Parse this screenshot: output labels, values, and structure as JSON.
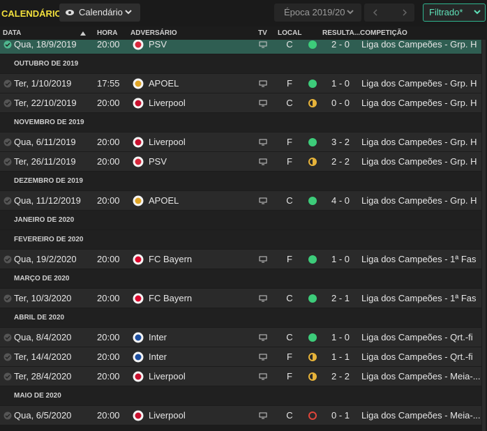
{
  "header": {
    "title": "CALENDÁRIO",
    "view_button": "Calendário",
    "season": "Época 2019/20",
    "filter": "Filtrado*"
  },
  "columns": [
    "DATA",
    "HORA",
    "ADVERSÁRIO",
    "TV",
    "LOCAL",
    "RESULTA...",
    "COMPETIÇÃO"
  ],
  "rows": [
    {
      "date": "Qua, 18/9/2019",
      "time": "20:00",
      "opponent": "PSV",
      "crest": "#d8283c",
      "venue": "C",
      "outcome": "win",
      "result": "2 - 0",
      "competition": "Liga dos Campeões - Grp. H",
      "selected": true
    },
    {
      "section": "OUTUBRO DE 2019"
    },
    {
      "date": "Ter, 1/10/2019",
      "time": "17:55",
      "opponent": "APOEL",
      "crest": "#e0a526",
      "venue": "F",
      "outcome": "win",
      "result": "1 - 0",
      "competition": "Liga dos Campeões - Grp. H"
    },
    {
      "date": "Ter, 22/10/2019",
      "time": "20:00",
      "opponent": "Liverpool",
      "crest": "#c8102e",
      "venue": "C",
      "outcome": "draw",
      "result": "0 - 0",
      "competition": "Liga dos Campeões - Grp. H"
    },
    {
      "section": "NOVEMBRO DE 2019"
    },
    {
      "date": "Qua, 6/11/2019",
      "time": "20:00",
      "opponent": "Liverpool",
      "crest": "#c8102e",
      "venue": "F",
      "outcome": "win",
      "result": "3 - 2",
      "competition": "Liga dos Campeões - Grp. H"
    },
    {
      "date": "Ter, 26/11/2019",
      "time": "20:00",
      "opponent": "PSV",
      "crest": "#d8283c",
      "venue": "F",
      "outcome": "draw",
      "result": "2 - 2",
      "competition": "Liga dos Campeões - Grp. H"
    },
    {
      "section": "DEZEMBRO DE 2019"
    },
    {
      "date": "Qua, 11/12/2019",
      "time": "20:00",
      "opponent": "APOEL",
      "crest": "#e0a526",
      "venue": "C",
      "outcome": "win",
      "result": "4 - 0",
      "competition": "Liga dos Campeões - Grp. H"
    },
    {
      "section": "JANEIRO DE 2020"
    },
    {
      "section": "FEVEREIRO DE 2020"
    },
    {
      "date": "Qua, 19/2/2020",
      "time": "20:00",
      "opponent": "FC Bayern",
      "crest": "#dc052d",
      "venue": "F",
      "outcome": "win",
      "result": "1 - 0",
      "competition": "Liga dos Campeões - 1ª Fas"
    },
    {
      "section": "MARÇO DE 2020"
    },
    {
      "date": "Ter, 10/3/2020",
      "time": "20:00",
      "opponent": "FC Bayern",
      "crest": "#dc052d",
      "venue": "C",
      "outcome": "win",
      "result": "2 - 1",
      "competition": "Liga dos Campeões - 1ª Fas"
    },
    {
      "section": "ABRIL DE 2020"
    },
    {
      "date": "Qua, 8/4/2020",
      "time": "20:00",
      "opponent": "Inter",
      "crest": "#1e4fa0",
      "venue": "C",
      "outcome": "win",
      "result": "1 - 0",
      "competition": "Liga dos Campeões - Qrt.-fi"
    },
    {
      "date": "Ter, 14/4/2020",
      "time": "20:00",
      "opponent": "Inter",
      "crest": "#1e4fa0",
      "venue": "F",
      "outcome": "draw",
      "result": "1 - 1",
      "competition": "Liga dos Campeões - Qrt.-fi"
    },
    {
      "date": "Ter, 28/4/2020",
      "time": "20:00",
      "opponent": "Liverpool",
      "crest": "#c8102e",
      "venue": "F",
      "outcome": "draw",
      "result": "2 - 2",
      "competition": "Liga dos Campeões - Meia-..."
    },
    {
      "section": "MAIO DE 2020"
    },
    {
      "date": "Qua, 6/5/2020",
      "time": "20:00",
      "opponent": "Liverpool",
      "crest": "#c8102e",
      "venue": "C",
      "outcome": "loss",
      "result": "0 - 1",
      "competition": "Liga dos Campeões - Meia-..."
    }
  ]
}
